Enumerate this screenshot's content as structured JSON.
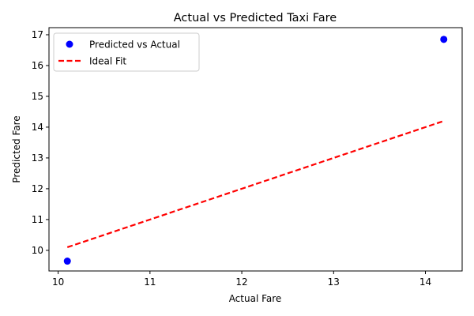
{
  "chart_data": {
    "type": "scatter",
    "title": "Actual vs Predicted Taxi Fare",
    "xlabel": "Actual Fare",
    "ylabel": "Predicted Fare",
    "xlim": [
      9.9,
      14.4
    ],
    "ylim": [
      9.33,
      17.23
    ],
    "xticks": [
      10,
      11,
      12,
      13,
      14
    ],
    "yticks": [
      10,
      11,
      12,
      13,
      14,
      15,
      16,
      17
    ],
    "grid": false,
    "legend_position": "top-left",
    "series": [
      {
        "name": "Predicted vs Actual",
        "kind": "scatter",
        "color": "#0000ff",
        "x": [
          10.1,
          14.2
        ],
        "y": [
          9.65,
          16.85
        ]
      },
      {
        "name": "Ideal Fit",
        "kind": "line",
        "style": "dashed",
        "color": "#ff0000",
        "x": [
          10.1,
          14.2
        ],
        "y": [
          10.1,
          14.2
        ]
      }
    ]
  }
}
